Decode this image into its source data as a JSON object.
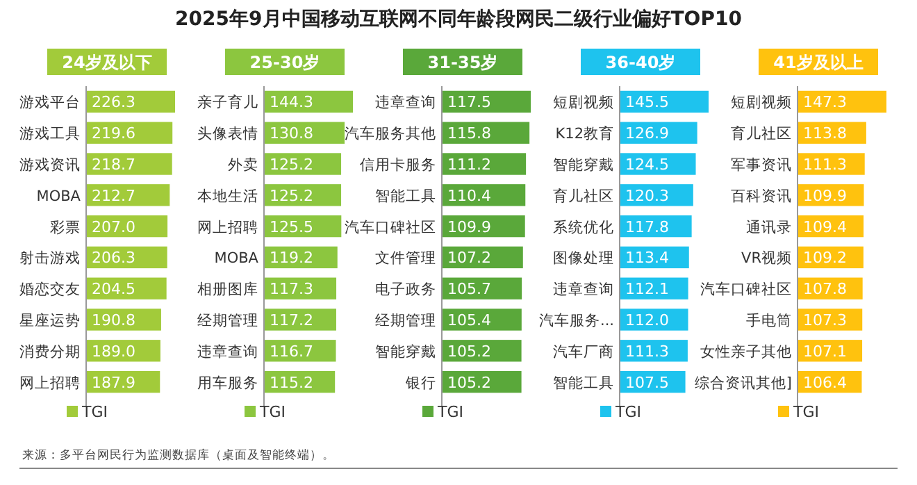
{
  "chart_data": [
    {
      "type": "other",
      "title": "2025年9月中国移动互联网不同年龄段网民二级行业偏好TOP10",
      "annotations": [
        "来源：多平台网民行为监测数据库（桌面及智能终端）。"
      ]
    },
    {
      "type": "bar",
      "orientation": "horizontal",
      "subtitle": "24岁及以下",
      "categories": [
        "游戏平台",
        "游戏工具",
        "游戏资讯",
        "MOBA",
        "彩票",
        "射击游戏",
        "婚恋交友",
        "星座运势",
        "消费分期",
        "网上招聘"
      ],
      "series": [
        {
          "name": "TGI",
          "color": "#a2cb3a",
          "values": [
            226.3,
            219.6,
            218.7,
            212.7,
            207.0,
            206.3,
            204.5,
            190.8,
            189.0,
            187.9
          ],
          "value_labels": [
            "226.3",
            "219.6",
            "218.7",
            "212.7",
            "207.0",
            "206.3",
            "204.5",
            "190.8",
            "189.0",
            "187.9"
          ]
        }
      ],
      "legend": "bottom"
    },
    {
      "type": "bar",
      "orientation": "horizontal",
      "subtitle": "25-30岁",
      "categories": [
        "亲子育儿",
        "头像表情",
        "外卖",
        "本地生活",
        "网上招聘",
        "MOBA",
        "相册图库",
        "经期管理",
        "违章查询",
        "用车服务"
      ],
      "series": [
        {
          "name": "TGI",
          "color": "#8cc63f",
          "values": [
            144.3,
            130.8,
            125.2,
            125.2,
            125.5,
            119.2,
            117.3,
            117.2,
            116.7,
            115.2
          ],
          "value_labels": [
            "144.3",
            "130.8",
            "125.2",
            "125.2",
            "125.5",
            "119.2",
            "117.3",
            "117.2",
            "116.7",
            "115.2"
          ]
        }
      ],
      "legend": "bottom"
    },
    {
      "type": "bar",
      "orientation": "horizontal",
      "subtitle": "31-35岁",
      "categories": [
        "违章查询",
        "汽车服务其他",
        "信用卡服务",
        "智能工具",
        "汽车口碑社区",
        "文件管理",
        "电子政务",
        "经期管理",
        "智能穿戴",
        "银行"
      ],
      "series": [
        {
          "name": "TGI",
          "color": "#5aa83a",
          "values": [
            117.5,
            115.8,
            111.2,
            110.4,
            109.9,
            107.2,
            105.7,
            105.4,
            105.2,
            105.2
          ],
          "value_labels": [
            "117.5",
            "115.8",
            "111.2",
            "110.4",
            "109.9",
            "107.2",
            "105.7",
            "105.4",
            "105.2",
            "105.2"
          ]
        }
      ],
      "legend": "bottom"
    },
    {
      "type": "bar",
      "orientation": "horizontal",
      "subtitle": "36-40岁",
      "categories": [
        "短剧视频",
        "K12教育",
        "智能穿戴",
        "育儿社区",
        "系统优化",
        "图像处理",
        "违章查询",
        "汽车服务...",
        "汽车厂商",
        "智能工具"
      ],
      "series": [
        {
          "name": "TGI",
          "color": "#1ec3ee",
          "values": [
            145.5,
            126.9,
            124.5,
            120.3,
            117.8,
            113.4,
            112.1,
            112.0,
            111.3,
            107.5
          ],
          "value_labels": [
            "145.5",
            "126.9",
            "124.5",
            "120.3",
            "117.8",
            "113.4",
            "112.1",
            "112.0",
            "111.3",
            "107.5"
          ]
        }
      ],
      "legend": "bottom"
    },
    {
      "type": "bar",
      "orientation": "horizontal",
      "subtitle": "41岁及以上",
      "categories": [
        "短剧视频",
        "育儿社区",
        "军事资讯",
        "百科资讯",
        "通讯录",
        "VR视频",
        "汽车口碑社区",
        "手电筒",
        "女性亲子其他",
        "综合资讯其他]"
      ],
      "series": [
        {
          "name": "TGI",
          "color": "#ffc20e",
          "values": [
            147.3,
            113.8,
            111.3,
            109.9,
            109.4,
            109.2,
            107.8,
            107.3,
            107.1,
            106.4
          ],
          "value_labels": [
            "147.3",
            "113.8",
            "111.3",
            "109.9",
            "109.4",
            "109.2",
            "107.8",
            "107.3",
            "107.1",
            "106.4"
          ]
        }
      ],
      "legend": "bottom"
    }
  ]
}
